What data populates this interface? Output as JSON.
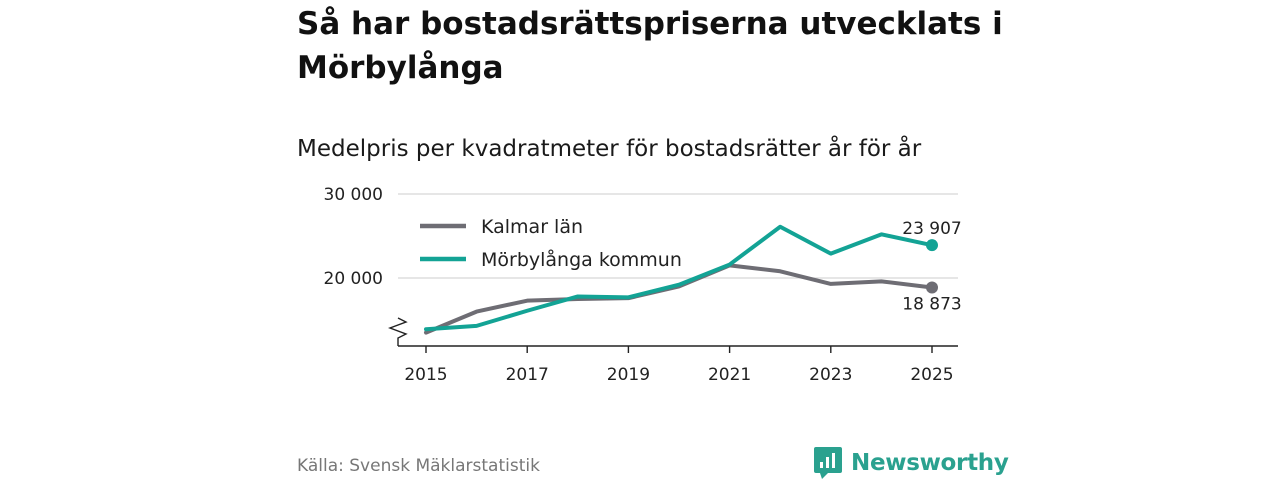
{
  "page": {
    "title": "Så har bostadsrättspriserna utvecklats i Mörbylånga",
    "subtitle": "Medelpris per kvadratmeter för bostadsrätter år för år",
    "source": "Källa: Svensk Mäklarstatistik",
    "brand": "Newsworthy"
  },
  "colors": {
    "kalmar": "#6e6d74",
    "morbylanga": "#13a395",
    "grid": "#d8d8d8",
    "axis": "#222222",
    "brand": "#2aa18f"
  },
  "chart_data": {
    "type": "line",
    "title": "Så har bostadsrättspriserna utvecklats i Mörbylånga",
    "subtitle": "Medelpris per kvadratmeter för bostadsrätter år för år",
    "x": [
      2015,
      2016,
      2017,
      2018,
      2019,
      2020,
      2021,
      2022,
      2023,
      2024,
      2025
    ],
    "xticks": [
      2015,
      2017,
      2019,
      2021,
      2023,
      2025
    ],
    "xtick_labels": [
      "2015",
      "2017",
      "2019",
      "2021",
      "2023",
      "2025"
    ],
    "yticks": [
      20000,
      30000
    ],
    "ytick_labels": [
      "20 000",
      "30 000"
    ],
    "ylim": [
      12000,
      30000
    ],
    "xlim": [
      2014.5,
      2025.5
    ],
    "axis_break": true,
    "legend_position": "top-left",
    "series": [
      {
        "name": "Kalmar län",
        "color_key": "kalmar",
        "values": [
          13500,
          16000,
          17300,
          17500,
          17600,
          19000,
          21500,
          20800,
          19300,
          19600,
          18873
        ],
        "end_label": "18 873",
        "end_label_position": "below"
      },
      {
        "name": "Mörbylånga kommun",
        "color_key": "morbylanga",
        "values": [
          13900,
          14300,
          16100,
          17800,
          17700,
          19200,
          21600,
          26100,
          22900,
          25200,
          23907
        ],
        "end_label": "23 907",
        "end_label_position": "above"
      }
    ]
  }
}
